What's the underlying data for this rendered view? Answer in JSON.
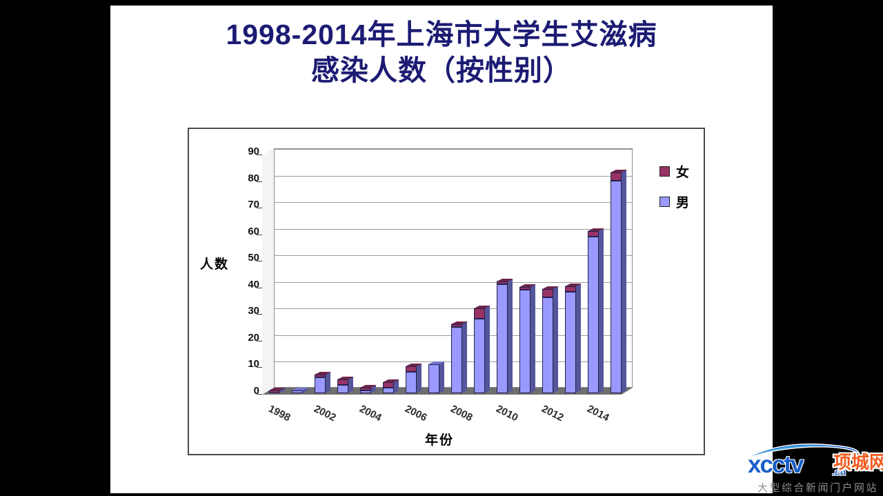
{
  "title": {
    "line1": "1998-2014年上海市大学生艾滋病",
    "line2": "感染人数（按性别）",
    "color": "#1c1b73"
  },
  "chart_data": {
    "type": "bar",
    "stacked": true,
    "style": "3d-column",
    "bar_count": 16,
    "x_tick_labels": [
      "1998",
      "2002",
      "2004",
      "2006",
      "2008",
      "2010",
      "2012",
      "2014"
    ],
    "tick_bar_indices": [
      0,
      2,
      4,
      6,
      8,
      10,
      12,
      14
    ],
    "series": [
      {
        "name": "男",
        "color": "#9999FF",
        "top_color": "#7777cf",
        "values": [
          0,
          1,
          6,
          3,
          1,
          2,
          8,
          11,
          25,
          28,
          41,
          39,
          36,
          38,
          59,
          80
        ]
      },
      {
        "name": "女",
        "color": "#993366",
        "top_color": "#6e2449",
        "values": [
          1,
          0,
          1,
          2,
          1,
          2,
          2,
          0,
          1,
          4,
          1,
          1,
          3,
          2,
          2,
          3
        ]
      }
    ],
    "y_ticks": [
      0,
      10,
      20,
      30,
      40,
      50,
      60,
      70,
      80,
      90
    ],
    "ylim": [
      0,
      90
    ],
    "grid": true,
    "ylabel": "人数",
    "xlabel": "年份",
    "legend_position": "top-right"
  },
  "legend": {
    "items": [
      {
        "label": "女",
        "color": "#993366"
      },
      {
        "label": "男",
        "color": "#9999FF"
      }
    ]
  },
  "watermark": {
    "logo_text": "xcctv",
    "logo_suffix": ".cn",
    "brand_text": "项城网",
    "tagline": "大型综合新闻门户网站",
    "logo_color": "#1a5fc8",
    "brand_color": "#f25c1e",
    "tagline_color": "#8f8f8f"
  }
}
